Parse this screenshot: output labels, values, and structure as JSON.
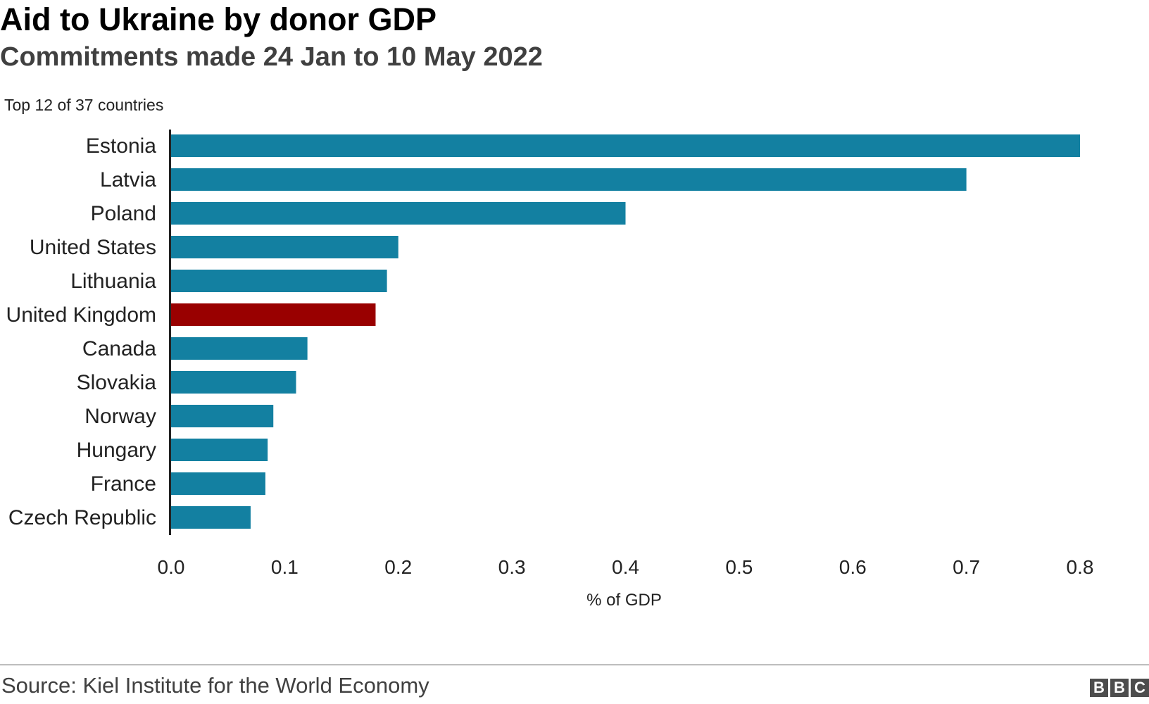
{
  "chart_data": {
    "type": "bar",
    "orientation": "horizontal",
    "title": "Aid to Ukraine by donor GDP",
    "subtitle": "Commitments made 24 Jan to 10 May 2022",
    "note": "Top 12 of 37 countries",
    "categories": [
      "Estonia",
      "Latvia",
      "Poland",
      "United States",
      "Lithuania",
      "United Kingdom",
      "Canada",
      "Slovakia",
      "Norway",
      "Hungary",
      "France",
      "Czech Republic"
    ],
    "values": [
      0.8,
      0.7,
      0.4,
      0.2,
      0.19,
      0.18,
      0.12,
      0.11,
      0.09,
      0.085,
      0.083,
      0.07
    ],
    "highlight": "United Kingdom",
    "xlabel": "% of GDP",
    "ylabel": "",
    "xlim": [
      0,
      0.8
    ],
    "xticks": [
      "0.0",
      "0.1",
      "0.2",
      "0.3",
      "0.4",
      "0.5",
      "0.6",
      "0.7",
      "0.8"
    ],
    "grid": false,
    "colors": {
      "bar": "#1380a1",
      "highlight": "#990000",
      "axis": "#222222"
    }
  },
  "footer": {
    "source": "Source: Kiel Institute for the World Economy",
    "logo_letters": [
      "B",
      "B",
      "C"
    ]
  }
}
